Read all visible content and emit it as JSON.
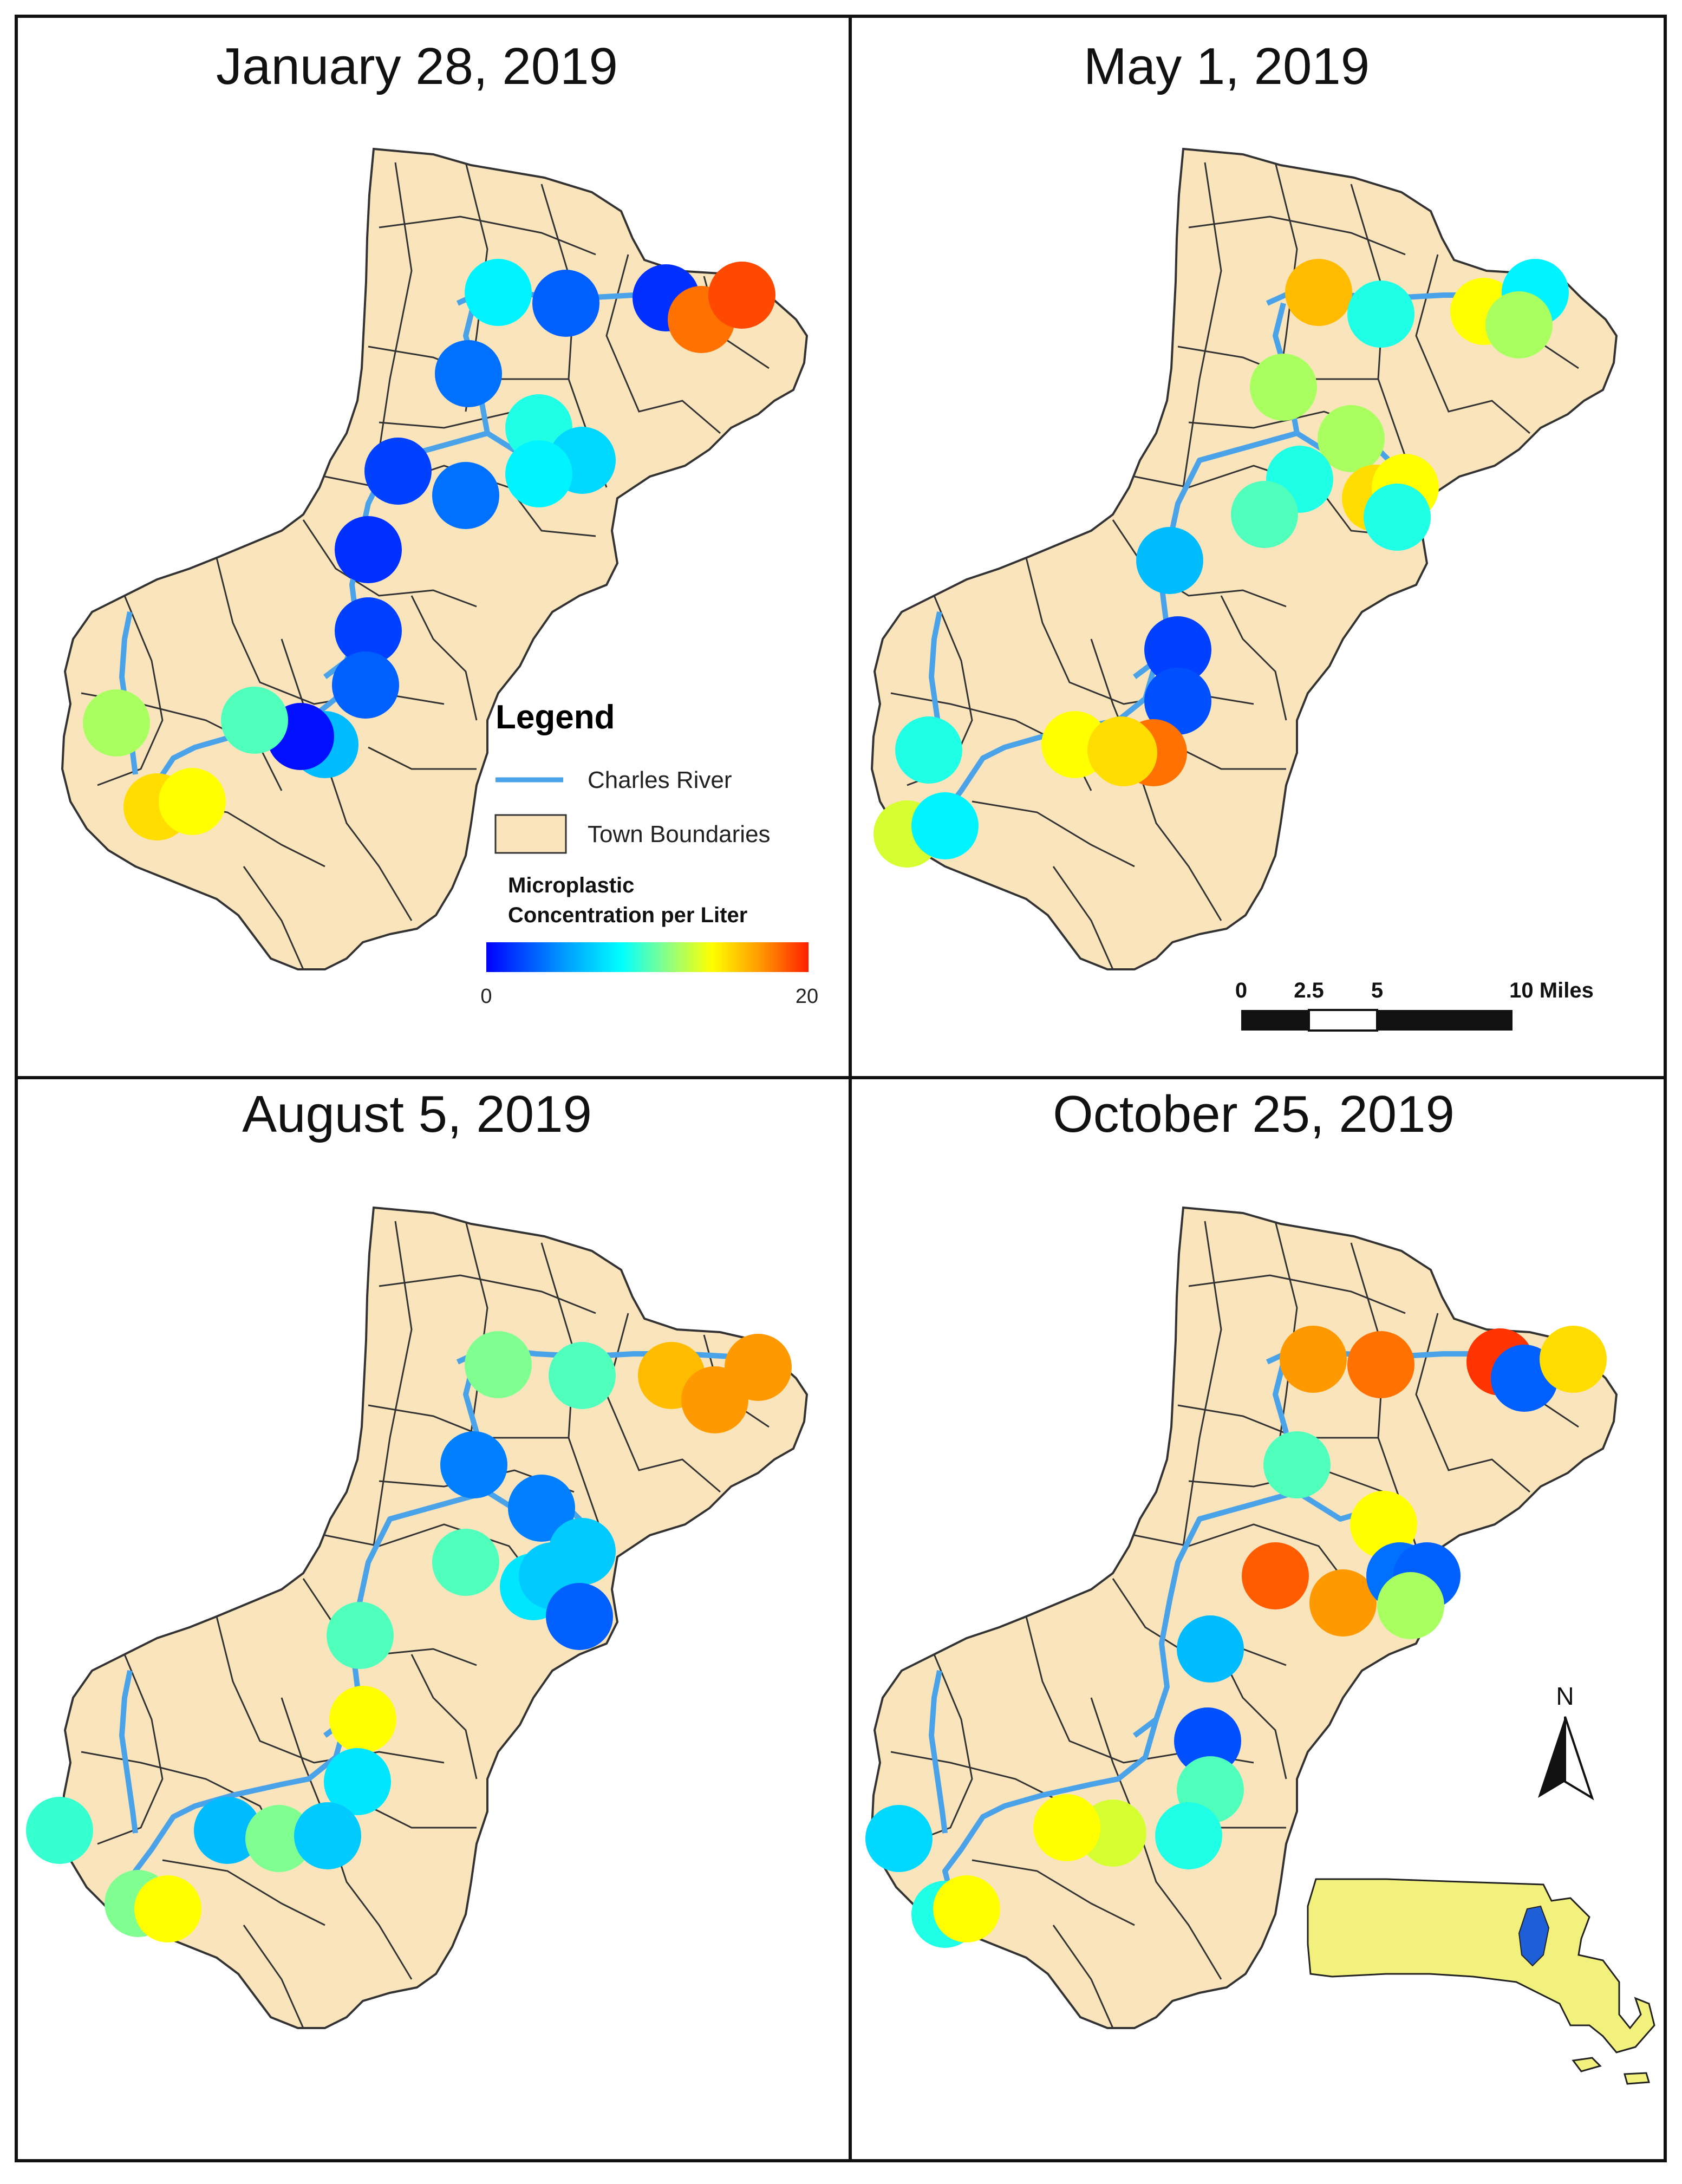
{
  "panels": [
    {
      "title": "January 28, 2019",
      "points": [
        {
          "site": 1,
          "value": 8.0
        },
        {
          "site": 2,
          "value": 3.0
        },
        {
          "site": 3,
          "value": 1.5
        },
        {
          "site": 4,
          "value": 18.0
        },
        {
          "site": 5,
          "value": 19.0
        },
        {
          "site": 6,
          "value": 3.5
        },
        {
          "site": 7,
          "value": 9.0
        },
        {
          "site": 8,
          "value": 7.0
        },
        {
          "site": 9,
          "value": 8.0
        },
        {
          "site": 10,
          "value": 2.0
        },
        {
          "site": 11,
          "value": 3.5
        },
        {
          "site": 12,
          "value": 1.5
        },
        {
          "site": 13,
          "value": 2.0
        },
        {
          "site": 14,
          "value": 3.0
        },
        {
          "site": 15,
          "value": 6.0
        },
        {
          "site": 16,
          "value": 0.5
        },
        {
          "site": 17,
          "value": 12.0
        },
        {
          "site": 18,
          "value": 15.0
        },
        {
          "site": 19,
          "value": 14.0
        },
        {
          "site": 20,
          "value": 10.0
        }
      ]
    },
    {
      "title": "May 1, 2019",
      "points": [
        {
          "site": 1,
          "value": 16.0
        },
        {
          "site": 2,
          "value": 9.0
        },
        {
          "site": 3,
          "value": 14.0
        },
        {
          "site": 4,
          "value": 8.0
        },
        {
          "site": 5,
          "value": 12.0
        },
        {
          "site": 6,
          "value": 12.0
        },
        {
          "site": 7,
          "value": 12.0
        },
        {
          "site": 8,
          "value": 15.0
        },
        {
          "site": 9,
          "value": 14.0
        },
        {
          "site": 10,
          "value": 9.0
        },
        {
          "site": 11,
          "value": 9.0
        },
        {
          "site": 12,
          "value": 10.0
        },
        {
          "site": 13,
          "value": 6.0
        },
        {
          "site": 14,
          "value": 2.0
        },
        {
          "site": 15,
          "value": 2.5
        },
        {
          "site": 16,
          "value": 18.0
        },
        {
          "site": 17,
          "value": 15.0
        },
        {
          "site": 18,
          "value": 14.0
        },
        {
          "site": 19,
          "value": 9.0
        },
        {
          "site": 20,
          "value": 13.0
        },
        {
          "site": 21,
          "value": 8.0
        },
        {
          "site": 22,
          "value": 15.0
        }
      ]
    },
    {
      "title": "August 5, 2019",
      "points": [
        {
          "site": 1,
          "value": 11.0
        },
        {
          "site": 2,
          "value": 10.0
        },
        {
          "site": 3,
          "value": 16.0
        },
        {
          "site": 4,
          "value": 17.0
        },
        {
          "site": 5,
          "value": 17.0
        },
        {
          "site": 6,
          "value": 4.0
        },
        {
          "site": 7,
          "value": 4.0
        },
        {
          "site": 8,
          "value": 6.5
        },
        {
          "site": 9,
          "value": 10.0
        },
        {
          "site": 10,
          "value": 7.5
        },
        {
          "site": 11,
          "value": 6.5
        },
        {
          "site": 12,
          "value": 3.0
        },
        {
          "site": 13,
          "value": 10.0
        },
        {
          "site": 14,
          "value": 14.0
        },
        {
          "site": 15,
          "value": 7.5
        },
        {
          "site": 16,
          "value": 9.5
        },
        {
          "site": 17,
          "value": 11.0
        },
        {
          "site": 18,
          "value": 6.0
        },
        {
          "site": 19,
          "value": 11.0
        },
        {
          "site": 20,
          "value": 6.5
        },
        {
          "site": 21,
          "value": 14.0
        }
      ]
    },
    {
      "title": "October 25, 2019",
      "points": [
        {
          "site": 1,
          "value": 17.0
        },
        {
          "site": 2,
          "value": 18.0
        },
        {
          "site": 3,
          "value": 19.5
        },
        {
          "site": 4,
          "value": 3.0
        },
        {
          "site": 5,
          "value": 15.0
        },
        {
          "site": 6,
          "value": 10.0
        },
        {
          "site": 7,
          "value": 14.0
        },
        {
          "site": 8,
          "value": 18.5
        },
        {
          "site": 9,
          "value": 17.0
        },
        {
          "site": 10,
          "value": 3.5
        },
        {
          "site": 11,
          "value": 3.0
        },
        {
          "site": 12,
          "value": 12.0
        },
        {
          "site": 13,
          "value": 6.0
        },
        {
          "site": 14,
          "value": 2.5
        },
        {
          "site": 15,
          "value": 10.0
        },
        {
          "site": 16,
          "value": 9.0
        },
        {
          "site": 17,
          "value": 13.0
        },
        {
          "site": 18,
          "value": 14.0
        },
        {
          "site": 19,
          "value": 7.0
        },
        {
          "site": 20,
          "value": 9.0
        },
        {
          "site": 21,
          "value": 14.0
        }
      ]
    }
  ],
  "legend": {
    "title": "Legend",
    "river_label": "Charles River",
    "town_label": "Town Boundaries",
    "scale_title_line1": "Microplastic",
    "scale_title_line2": "Concentration per Liter",
    "scale_min": "0",
    "scale_max": "20"
  },
  "scalebar": {
    "labels": [
      "0",
      "2.5",
      "5",
      "10 Miles"
    ]
  },
  "north_label": "N",
  "colors": {
    "land": "#f9e4bc",
    "land_border": "#333333",
    "river": "#4aa3e8",
    "ma_state": "#f3f17e",
    "ma_highlight": "#1e5fd8",
    "frame": "#111111"
  }
}
